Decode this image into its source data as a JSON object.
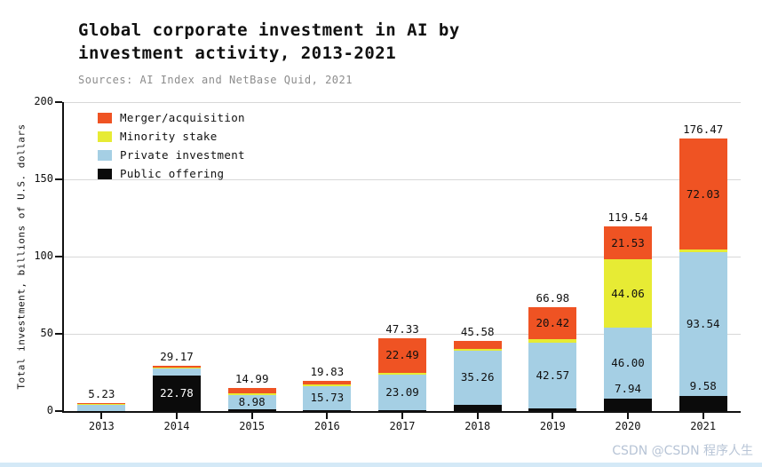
{
  "title": "Global corporate investment in AI by\ninvestment activity, 2013-2021",
  "subtitle": "Sources: AI Index and NetBase Quid, 2021",
  "watermark": "CSDN @CSDN 程序人生",
  "colors": {
    "merger": "#ef5323",
    "minority": "#e7eb34",
    "private": "#a5cfe4",
    "public": "#0b0b0b",
    "grid": "#d8d8d8",
    "axis": "#111111"
  },
  "legend": [
    {
      "key": "merger",
      "label": "Merger/acquisition",
      "color": "#ef5323"
    },
    {
      "key": "minority",
      "label": "Minority stake",
      "color": "#e7eb34"
    },
    {
      "key": "private",
      "label": "Private investment",
      "color": "#a5cfe4"
    },
    {
      "key": "public",
      "label": "Public offering",
      "color": "#0b0b0b"
    }
  ],
  "chart_data": {
    "type": "bar",
    "stacked": true,
    "title": "Global corporate investment in AI by investment activity, 2013-2021",
    "xlabel": "",
    "ylabel": "Total investment, billions of U.S. dollars",
    "ylim": [
      0,
      200
    ],
    "yticks": [
      0,
      50,
      100,
      150,
      200
    ],
    "grid": true,
    "legend_position": "upper-left",
    "categories": [
      "2013",
      "2014",
      "2015",
      "2016",
      "2017",
      "2018",
      "2019",
      "2020",
      "2021"
    ],
    "totals": [
      "5.23",
      "29.17",
      "14.99",
      "19.83",
      "47.33",
      "45.58",
      "66.98",
      "119.54",
      "176.47"
    ],
    "series": [
      {
        "key": "public",
        "name": "Public offering",
        "color": "#0b0b0b",
        "values": [
          0.1,
          22.78,
          1.2,
          0.6,
          0.5,
          4.0,
          1.6,
          7.94,
          9.58
        ]
      },
      {
        "key": "private",
        "name": "Private investment",
        "color": "#a5cfe4",
        "values": [
          4.2,
          4.8,
          8.98,
          15.73,
          23.09,
          35.26,
          42.57,
          46.0,
          93.54
        ]
      },
      {
        "key": "minority",
        "name": "Minority stake",
        "color": "#e7eb34",
        "values": [
          0.25,
          0.7,
          1.3,
          0.7,
          1.25,
          1.2,
          2.39,
          44.06,
          1.32
        ]
      },
      {
        "key": "merger",
        "name": "Merger/acquisition",
        "color": "#ef5323",
        "values": [
          0.68,
          0.89,
          3.51,
          2.8,
          22.49,
          5.12,
          20.42,
          21.53,
          72.03
        ]
      }
    ],
    "bar_labels": [
      [],
      [
        {
          "series": "public",
          "text": "22.78",
          "color": "#ffffff"
        }
      ],
      [
        {
          "series": "private",
          "text": "8.98"
        }
      ],
      [
        {
          "series": "private",
          "text": "15.73"
        }
      ],
      [
        {
          "series": "merger",
          "text": "22.49"
        },
        {
          "series": "private",
          "text": "23.09"
        }
      ],
      [
        {
          "series": "private",
          "text": "35.26"
        }
      ],
      [
        {
          "series": "merger",
          "text": "20.42"
        },
        {
          "series": "private",
          "text": "42.57"
        }
      ],
      [
        {
          "series": "merger",
          "text": "21.53"
        },
        {
          "series": "minority",
          "text": "44.06"
        },
        {
          "series": "private",
          "text": "46.00"
        },
        {
          "series": "public",
          "text": "7.94",
          "place": "above"
        }
      ],
      [
        {
          "series": "merger",
          "text": "72.03"
        },
        {
          "series": "private",
          "text": "93.54"
        },
        {
          "series": "public",
          "text": "9.58",
          "place": "above"
        }
      ]
    ]
  }
}
